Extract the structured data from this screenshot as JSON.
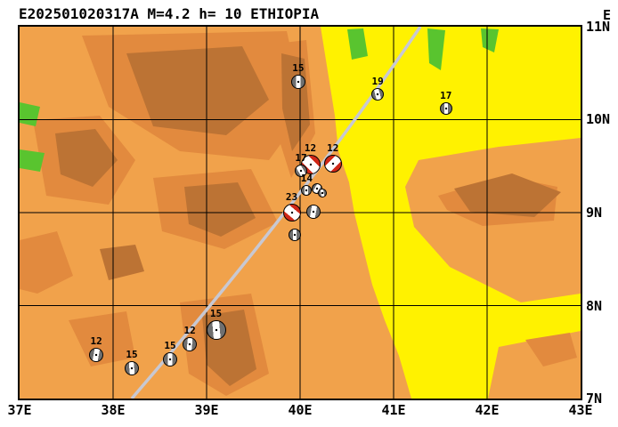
{
  "title": "E202501020317A M=4.2 h= 10 ETHIOPIA",
  "corner_label": "E",
  "axes": {
    "x_ticks": [
      "37E",
      "38E",
      "39E",
      "40E",
      "41E",
      "42E",
      "43E"
    ],
    "y_ticks": [
      "11N",
      "10N",
      "9N",
      "8N",
      "7N"
    ]
  },
  "map": {
    "lon_min": 37,
    "lon_max": 43,
    "lat_min": 7,
    "lat_max": 11
  },
  "colors": {
    "lowland_yellow": "#FFF200",
    "base_orange": "#F1A24B",
    "mid_orange": "#E28A3E",
    "highland_brown": "#BC7334",
    "vegetation_green": "#59C42F",
    "path_gray": "#C8C8D2",
    "event_red": "#D02818",
    "mechanism_gray": "#6F6F6F"
  },
  "beachballs": [
    {
      "label": "15",
      "lon": 39.98,
      "lat": 10.41,
      "r": 8,
      "type": "gray",
      "band": 90
    },
    {
      "label": "19",
      "lon": 40.83,
      "lat": 10.27,
      "r": 7,
      "type": "gray",
      "band": 75
    },
    {
      "label": "17",
      "lon": 41.56,
      "lat": 10.12,
      "r": 7,
      "type": "gray",
      "band": 90
    },
    {
      "label": "12",
      "lon": 40.11,
      "lat": 9.52,
      "r": 11,
      "type": "red",
      "band": 45
    },
    {
      "label": "12",
      "lon": 40.35,
      "lat": 9.53,
      "r": 10,
      "type": "red",
      "band": 135
    },
    {
      "label": "17",
      "lon": 40.01,
      "lat": 9.45,
      "r": 7,
      "type": "gray",
      "band": 60
    },
    {
      "label": "14",
      "lon": 40.07,
      "lat": 9.24,
      "r": 6,
      "type": "gray",
      "band": 90
    },
    {
      "label": "",
      "lon": 40.18,
      "lat": 9.26,
      "r": 6,
      "type": "gray",
      "band": 120
    },
    {
      "label": "",
      "lon": 40.24,
      "lat": 9.21,
      "r": 5,
      "type": "gray",
      "band": 80
    },
    {
      "label": "23",
      "lon": 39.91,
      "lat": 9.0,
      "r": 10,
      "type": "red",
      "band": 40
    },
    {
      "label": "",
      "lon": 40.14,
      "lat": 9.01,
      "r": 8,
      "type": "gray",
      "band": 100
    },
    {
      "label": "",
      "lon": 39.94,
      "lat": 8.76,
      "r": 7,
      "type": "gray",
      "band": 90
    },
    {
      "label": "15",
      "lon": 39.1,
      "lat": 7.74,
      "r": 11,
      "type": "gray",
      "band": 85
    },
    {
      "label": "12",
      "lon": 38.82,
      "lat": 7.58,
      "r": 8,
      "type": "gray",
      "band": 95
    },
    {
      "label": "15",
      "lon": 38.61,
      "lat": 7.42,
      "r": 8,
      "type": "gray",
      "band": 90
    },
    {
      "label": "15",
      "lon": 38.2,
      "lat": 7.33,
      "r": 8,
      "type": "gray",
      "band": 85
    },
    {
      "label": "12",
      "lon": 37.82,
      "lat": 7.47,
      "r": 8,
      "type": "gray",
      "band": 100
    }
  ]
}
